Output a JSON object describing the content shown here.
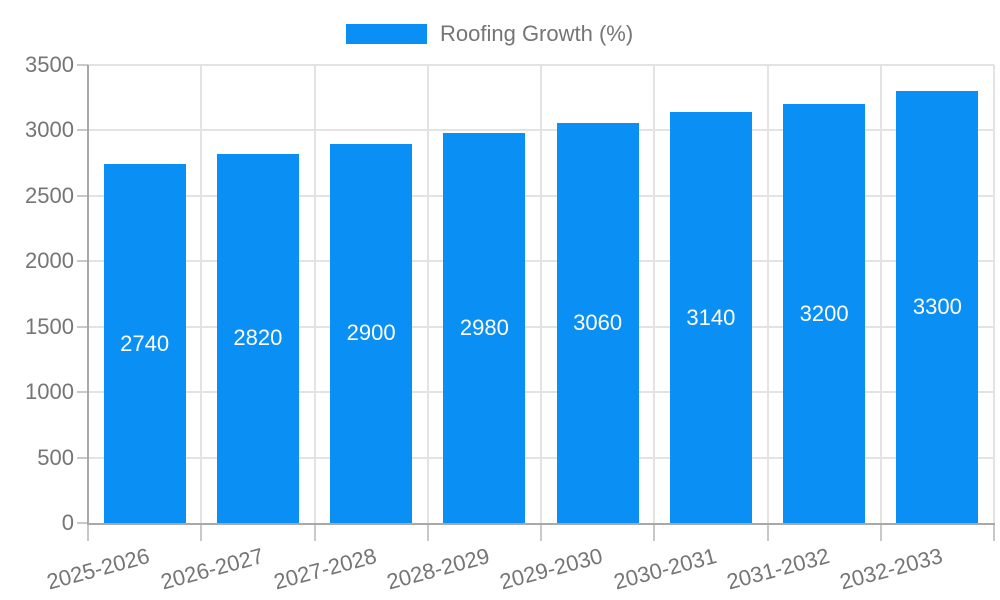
{
  "chart_data": {
    "type": "bar",
    "title": "",
    "legend": {
      "label": "Roofing Growth (%)",
      "position": "top"
    },
    "categories": [
      "2025-2026",
      "2026-2027",
      "2027-2028",
      "2028-2029",
      "2029-2030",
      "2030-2031",
      "2031-2032",
      "2032-2033"
    ],
    "series": [
      {
        "name": "Roofing Growth (%)",
        "color": "#0a8ff5",
        "values": [
          2740,
          2820,
          2900,
          2980,
          3060,
          3140,
          3200,
          3300
        ]
      }
    ],
    "bar_value_labels": [
      "2740",
      "2820",
      "2900",
      "2980",
      "3060",
      "3140",
      "3200",
      "3300"
    ],
    "ylim": [
      0,
      3500
    ],
    "yticks": [
      0,
      500,
      1000,
      1500,
      2000,
      2500,
      3000,
      3500
    ],
    "ytick_labels": [
      "0",
      "500",
      "1000",
      "1500",
      "2000",
      "2500",
      "3000",
      "3500"
    ],
    "grid": true,
    "xlabel": "",
    "ylabel": ""
  },
  "colors": {
    "bar": "#0a8ff5",
    "axis_text": "#757575",
    "legend_text": "#757575",
    "gridline": "#e3e3e3",
    "axis_line": "#a8a8a8",
    "tick": "#c9c9c9",
    "bar_label": "#ffffff",
    "background": "#ffffff"
  }
}
